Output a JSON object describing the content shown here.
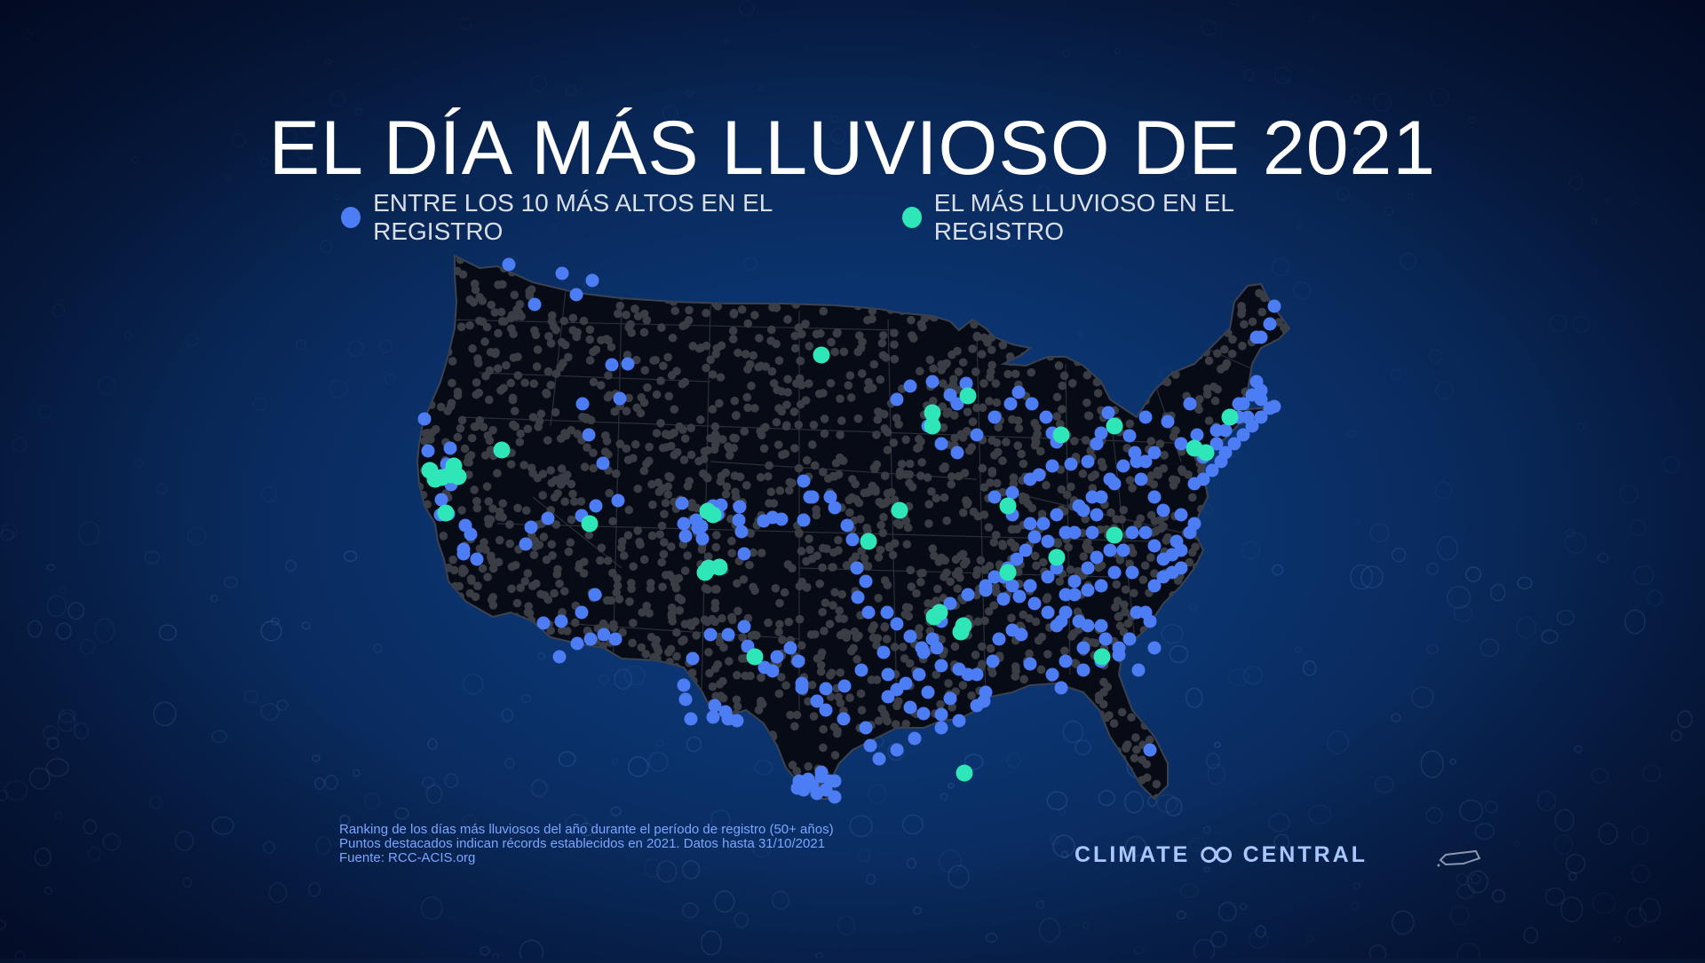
{
  "title": "EL DÍA MÁS LLUVIOSO DE 2021",
  "legend": {
    "items": [
      {
        "label": "ENTRE LOS 10 MÁS ALTOS EN EL REGISTRO",
        "color": "#4d7df5"
      },
      {
        "label": "EL MÁS LLUVIOSO EN EL REGISTRO",
        "color": "#2ee6b8"
      }
    ]
  },
  "footnote": {
    "line1": "Ranking de los días más lluviosos del año durante el período de registro (50+ años)",
    "line2": "Puntos destacados indican récords establecidos en 2021. Datos hasta 31/10/2021",
    "line3": "Fuente: RCC-ACIS.org"
  },
  "logo": {
    "left": "CLIMATE",
    "right": "CENTRAL"
  },
  "colors": {
    "background": "#0a2f66",
    "land": "#060b16",
    "station": "#3a3d44",
    "top10": "#4d7df5",
    "record": "#2ee6b8"
  },
  "map": {
    "region": "Estados Unidos contiguos",
    "station_count_rendered": 0
  }
}
